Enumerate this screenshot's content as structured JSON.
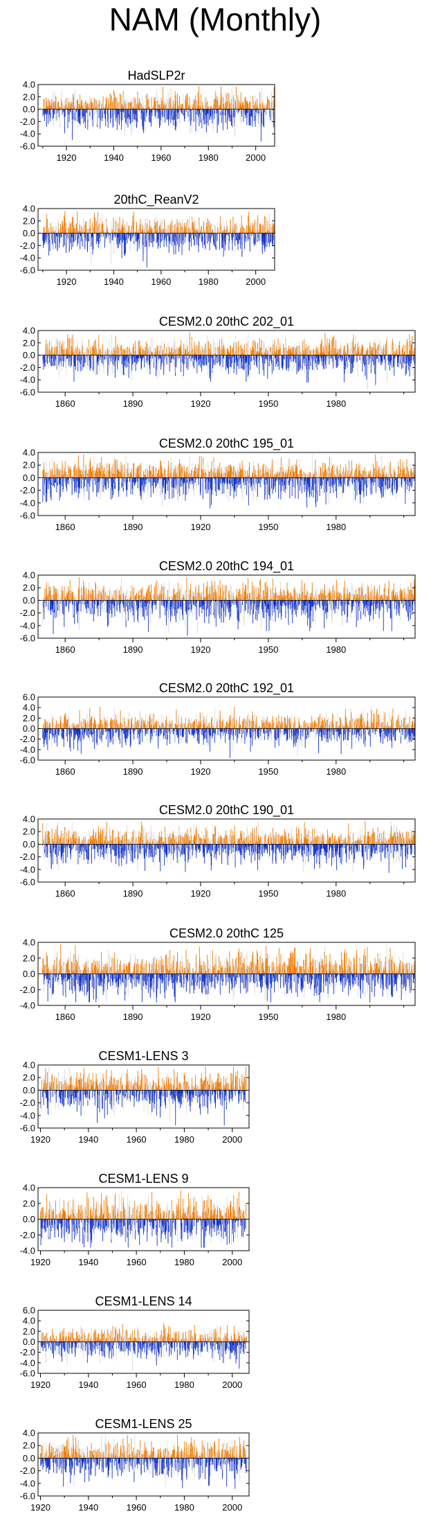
{
  "figure_title": "NAM (Monthly)",
  "colors": {
    "positive": "#f07a00",
    "negative": "#1030c8",
    "faint": "#d8d8d8",
    "axis": "#000000"
  },
  "chart_data": [
    {
      "type": "bar",
      "title": "HadSLP2r",
      "x_start": 1910,
      "x_end": 2007,
      "xlim": [
        1908,
        2008
      ],
      "xticks": [
        1920,
        1940,
        1960,
        1980,
        2000
      ],
      "ylim": [
        -6,
        4
      ],
      "yticks": [
        "4.0",
        "2.0",
        "0.0",
        "-2.0",
        "-4.0",
        "-6.0"
      ],
      "pos_scale": 2.0,
      "neg_scale": 2.4,
      "seed": 11
    },
    {
      "type": "bar",
      "title": "20thC_ReanV2",
      "x_start": 1910,
      "x_end": 2007,
      "xlim": [
        1908,
        2008
      ],
      "xticks": [
        1920,
        1940,
        1960,
        1980,
        2000
      ],
      "ylim": [
        -6,
        4
      ],
      "yticks": [
        "4.0",
        "2.0",
        "0.0",
        "-2.0",
        "-4.0",
        "-6.0"
      ],
      "pos_scale": 2.0,
      "neg_scale": 2.5,
      "seed": 23
    },
    {
      "type": "bar",
      "title": "CESM2.0 20thC 202_01",
      "x_start": 1850,
      "x_end": 2014,
      "xlim": [
        1848,
        2015
      ],
      "xticks": [
        1860,
        1890,
        1920,
        1950,
        1980
      ],
      "ylim": [
        -6,
        4
      ],
      "yticks": [
        "4.0",
        "2.0",
        "0.0",
        "-2.0",
        "-4.0",
        "-6.0"
      ],
      "pos_scale": 2.0,
      "neg_scale": 2.4,
      "seed": 37
    },
    {
      "type": "bar",
      "title": "CESM2.0 20thC 195_01",
      "x_start": 1850,
      "x_end": 2014,
      "xlim": [
        1848,
        2015
      ],
      "xticks": [
        1860,
        1890,
        1920,
        1950,
        1980
      ],
      "ylim": [
        -6,
        4
      ],
      "yticks": [
        "4.0",
        "2.0",
        "0.0",
        "-2.0",
        "-4.0",
        "-6.0"
      ],
      "pos_scale": 2.0,
      "neg_scale": 2.6,
      "seed": 41
    },
    {
      "type": "bar",
      "title": "CESM2.0 20thC 194_01",
      "x_start": 1850,
      "x_end": 2014,
      "xlim": [
        1848,
        2015
      ],
      "xticks": [
        1860,
        1890,
        1920,
        1950,
        1980
      ],
      "ylim": [
        -6,
        4
      ],
      "yticks": [
        "4.0",
        "2.0",
        "0.0",
        "-2.0",
        "-4.0",
        "-6.0"
      ],
      "pos_scale": 2.0,
      "neg_scale": 2.6,
      "seed": 53
    },
    {
      "type": "bar",
      "title": "CESM2.0 20thC 192_01",
      "x_start": 1850,
      "x_end": 2014,
      "xlim": [
        1848,
        2015
      ],
      "xticks": [
        1860,
        1890,
        1920,
        1950,
        1980
      ],
      "ylim": [
        -6,
        6
      ],
      "yticks": [
        "6.0",
        "4.0",
        "2.0",
        "0.0",
        "-2.0",
        "-4.0",
        "-6.0"
      ],
      "pos_scale": 2.2,
      "neg_scale": 2.4,
      "seed": 67
    },
    {
      "type": "bar",
      "title": "CESM2.0 20thC 190_01",
      "x_start": 1850,
      "x_end": 2014,
      "xlim": [
        1848,
        2015
      ],
      "xticks": [
        1860,
        1890,
        1920,
        1950,
        1980
      ],
      "ylim": [
        -6,
        4
      ],
      "yticks": [
        "4.0",
        "2.0",
        "0.0",
        "-2.0",
        "-4.0",
        "-6.0"
      ],
      "pos_scale": 2.0,
      "neg_scale": 2.4,
      "seed": 71
    },
    {
      "type": "bar",
      "title": "CESM2.0 20thC 125",
      "x_start": 1850,
      "x_end": 2014,
      "xlim": [
        1848,
        2015
      ],
      "xticks": [
        1860,
        1890,
        1920,
        1950,
        1980
      ],
      "ylim": [
        -4,
        4
      ],
      "yticks": [
        "4.0",
        "2.0",
        "0.0",
        "-2.0",
        "-4.0"
      ],
      "pos_scale": 2.0,
      "neg_scale": 2.2,
      "seed": 83
    },
    {
      "type": "bar",
      "title": "CESM1-LENS 3",
      "x_start": 1920,
      "x_end": 2005,
      "xlim": [
        1919,
        2007
      ],
      "xticks": [
        1920,
        1940,
        1960,
        1980,
        2000
      ],
      "ylim": [
        -6,
        4
      ],
      "yticks": [
        "4.0",
        "2.0",
        "0.0",
        "-2.0",
        "-4.0",
        "-6.0"
      ],
      "pos_scale": 2.2,
      "neg_scale": 2.6,
      "seed": 97
    },
    {
      "type": "bar",
      "title": "CESM1-LENS 9",
      "x_start": 1920,
      "x_end": 2005,
      "xlim": [
        1919,
        2007
      ],
      "xticks": [
        1920,
        1940,
        1960,
        1980,
        2000
      ],
      "ylim": [
        -4,
        4
      ],
      "yticks": [
        "4.0",
        "2.0",
        "0.0",
        "-2.0",
        "-4.0"
      ],
      "pos_scale": 2.0,
      "neg_scale": 2.2,
      "seed": 101
    },
    {
      "type": "bar",
      "title": "CESM1-LENS 14",
      "x_start": 1920,
      "x_end": 2005,
      "xlim": [
        1919,
        2007
      ],
      "xticks": [
        1920,
        1940,
        1960,
        1980,
        2000
      ],
      "ylim": [
        -6,
        6
      ],
      "yticks": [
        "6.0",
        "4.0",
        "2.0",
        "0.0",
        "-2.0",
        "-4.0",
        "-6.0"
      ],
      "pos_scale": 2.0,
      "neg_scale": 2.4,
      "seed": 113
    },
    {
      "type": "bar",
      "title": "CESM1-LENS 25",
      "x_start": 1920,
      "x_end": 2005,
      "xlim": [
        1919,
        2007
      ],
      "xticks": [
        1920,
        1940,
        1960,
        1980,
        2000
      ],
      "ylim": [
        -6,
        4
      ],
      "yticks": [
        "4.0",
        "2.0",
        "0.0",
        "-2.0",
        "-4.0",
        "-6.0"
      ],
      "pos_scale": 2.0,
      "neg_scale": 2.4,
      "seed": 127
    }
  ]
}
